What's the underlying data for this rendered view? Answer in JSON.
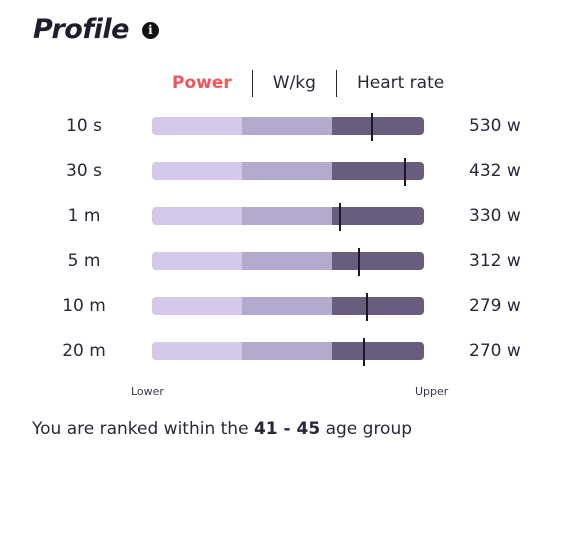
{
  "header": {
    "title": "Profile",
    "info_icon": "info-icon",
    "info_glyph": "i"
  },
  "tabs": [
    {
      "label": "Power",
      "active": true
    },
    {
      "label": "W/kg",
      "active": false
    },
    {
      "label": "Heart rate",
      "active": false
    }
  ],
  "colors": {
    "active_tab": "#f0555a",
    "band_low": "#d3c8ea",
    "band_mid": "#b4aace",
    "band_high": "#685d7d",
    "marker": "#1a1726"
  },
  "profile_rows": [
    {
      "duration": "10 s",
      "value": "530 w",
      "position_fraction": 0.81
    },
    {
      "duration": "30 s",
      "value": "432 w",
      "position_fraction": 0.93
    },
    {
      "duration": "1 m",
      "value": "330 w",
      "position_fraction": 0.69
    },
    {
      "duration": "5 m",
      "value": "312 w",
      "position_fraction": 0.76
    },
    {
      "duration": "10 m",
      "value": "279 w",
      "position_fraction": 0.79
    },
    {
      "duration": "20 m",
      "value": "270 w",
      "position_fraction": 0.78
    }
  ],
  "scale": {
    "lower": "Lower",
    "upper": "Upper"
  },
  "ranking": {
    "prefix": "You are ranked within the",
    "group": "41 - 45",
    "suffix": "age group"
  }
}
